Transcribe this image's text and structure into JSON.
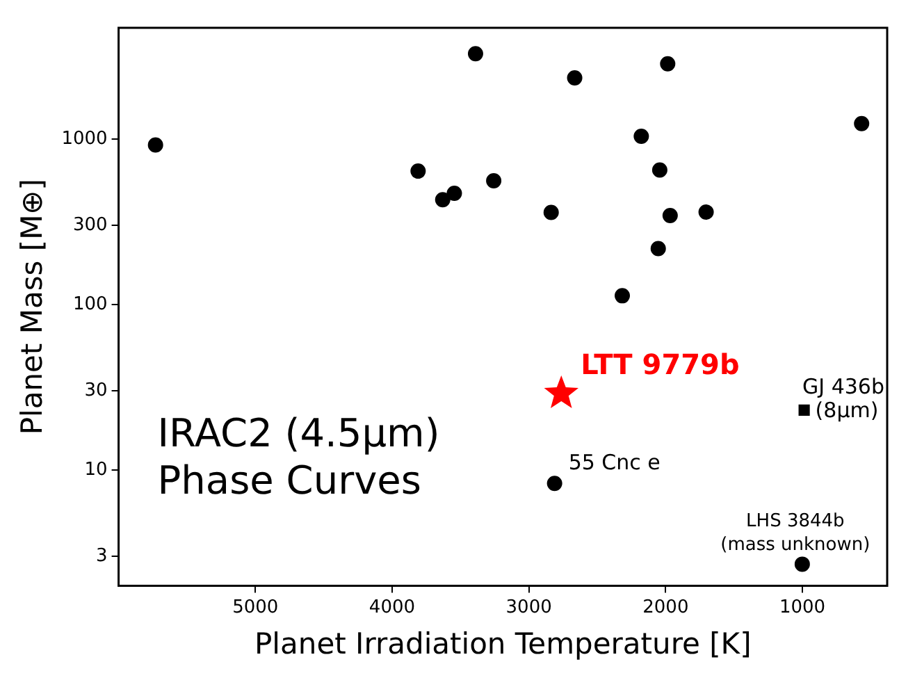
{
  "chart_data": {
    "type": "scatter",
    "xlabel": "Planet Irradiation Temperature [K]",
    "ylabel": "Planet Mass [M⊕]",
    "annotations": [
      "IRAC2 (4.5μm)",
      "Phase Curves"
    ],
    "xlim": [
      6000,
      380
    ],
    "xticks": [
      5000,
      4000,
      3000,
      2000,
      1000
    ],
    "ylim": [
      2,
      4700
    ],
    "yticks": [
      3,
      10,
      30,
      100,
      300,
      1000
    ],
    "log": true,
    "grid": false,
    "legend": false,
    "series": [
      {
        "color": "#000000",
        "marker": "circle",
        "x": [
          5730,
          3810,
          3630,
          3545,
          3390,
          3257,
          2837,
          2665,
          2317,
          2178,
          2054,
          2043,
          1985,
          1967,
          1704,
          567
        ],
        "values": [
          920,
          640,
          430,
          470,
          3280,
          560,
          360,
          2340,
          113,
          1040,
          218,
          650,
          2850,
          345,
          362,
          1240
        ]
      },
      {
        "name": "LTT 9779b",
        "color": "#ff0000",
        "marker": "star",
        "x": [
          2763
        ],
        "values": [
          29
        ]
      },
      {
        "name": "55 Cnc e",
        "color": "#000000",
        "marker": "circle",
        "x": [
          2812
        ],
        "values": [
          8.3
        ]
      },
      {
        "name": "GJ 436b (8μm)",
        "color": "#000000",
        "marker": "square",
        "x": [
          987
        ],
        "values": [
          23
        ]
      },
      {
        "name": "LHS 3844b (mass unknown)",
        "color": "#000000",
        "marker": "circle",
        "x": [
          1001
        ],
        "values": [
          2.7
        ]
      }
    ]
  }
}
